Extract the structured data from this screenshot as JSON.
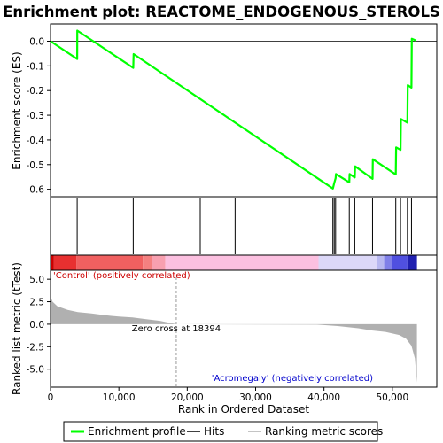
{
  "chart_data": {
    "type": "line",
    "title": "Enrichment plot: REACTOME_ENDOGENOUS_STEROLS",
    "xlabel": "Rank in Ordered Dataset",
    "xlim": [
      0,
      56500
    ],
    "x_ticks": [
      0,
      10000,
      20000,
      30000,
      40000,
      50000
    ],
    "x_tick_labels": [
      "0",
      "10,000",
      "20,000",
      "30,000",
      "40,000",
      "50,000"
    ],
    "es_panel": {
      "ylabel": "Enrichment score (ES)",
      "ylim": [
        -0.63,
        0.07
      ],
      "y_ticks": [
        0.0,
        -0.1,
        -0.2,
        -0.3,
        -0.4,
        -0.5,
        -0.6
      ],
      "y_tick_labels": [
        "0.0",
        "-0.1",
        "-0.2",
        "-0.3",
        "-0.4",
        "-0.5",
        "-0.6"
      ],
      "series": [
        {
          "name": "Enrichment profile",
          "color": "#00ff00",
          "points": [
            [
              0,
              0.0
            ],
            [
              3900,
              -0.072
            ],
            [
              3920,
              0.043
            ],
            [
              12100,
              -0.108
            ],
            [
              12150,
              -0.052
            ],
            [
              41300,
              -0.597
            ],
            [
              41500,
              -0.575
            ],
            [
              41700,
              -0.555
            ],
            [
              41750,
              -0.538
            ],
            [
              43700,
              -0.572
            ],
            [
              43750,
              -0.538
            ],
            [
              44500,
              -0.552
            ],
            [
              44550,
              -0.507
            ],
            [
              47100,
              -0.558
            ],
            [
              47150,
              -0.478
            ],
            [
              50500,
              -0.54
            ],
            [
              50550,
              -0.43
            ],
            [
              51200,
              -0.44
            ],
            [
              51250,
              -0.315
            ],
            [
              52200,
              -0.33
            ],
            [
              52250,
              -0.178
            ],
            [
              52800,
              -0.188
            ],
            [
              52850,
              0.01
            ],
            [
              53500,
              0.002
            ]
          ]
        }
      ]
    },
    "hits": {
      "name": "Hits",
      "positions": [
        3900,
        12100,
        21900,
        27000,
        41300,
        41500,
        41700,
        43700,
        44500,
        47100,
        50500,
        51200,
        52200,
        52800
      ]
    },
    "heatmap": {
      "segments": [
        {
          "from": 0,
          "to": 500,
          "color": "#cc0000"
        },
        {
          "from": 500,
          "to": 3800,
          "color": "#e83030"
        },
        {
          "from": 3800,
          "to": 13500,
          "color": "#f06060"
        },
        {
          "from": 13500,
          "to": 14800,
          "color": "#f48080"
        },
        {
          "from": 14800,
          "to": 16800,
          "color": "#f8a0b0"
        },
        {
          "from": 16800,
          "to": 39200,
          "color": "#fcc0e0"
        },
        {
          "from": 39200,
          "to": 47800,
          "color": "#dcd8f8"
        },
        {
          "from": 47800,
          "to": 48800,
          "color": "#b8b8f0"
        },
        {
          "from": 48800,
          "to": 50000,
          "color": "#8080e8"
        },
        {
          "from": 50000,
          "to": 52200,
          "color": "#5050e0"
        },
        {
          "from": 52200,
          "to": 53600,
          "color": "#2020b0"
        }
      ]
    },
    "metric_panel": {
      "ylabel": "Ranked list metric (tTest)",
      "ylim": [
        -7,
        6
      ],
      "y_ticks": [
        5.0,
        2.5,
        0.0,
        -2.5,
        -5.0
      ],
      "y_tick_labels": [
        "5.0",
        "2.5",
        "0.0",
        "-2.5",
        "-5.0"
      ],
      "profile": [
        [
          0,
          3.1
        ],
        [
          300,
          2.5
        ],
        [
          1000,
          2.0
        ],
        [
          2500,
          1.6
        ],
        [
          4000,
          1.35
        ],
        [
          6000,
          1.2
        ],
        [
          8000,
          1.0
        ],
        [
          10000,
          0.85
        ],
        [
          12000,
          0.75
        ],
        [
          14000,
          0.55
        ],
        [
          16000,
          0.38
        ],
        [
          18394,
          0.0
        ],
        [
          39000,
          -0.05
        ],
        [
          42000,
          -0.2
        ],
        [
          45000,
          -0.45
        ],
        [
          47000,
          -0.7
        ],
        [
          49000,
          -0.85
        ],
        [
          51000,
          -1.2
        ],
        [
          52000,
          -1.6
        ],
        [
          52800,
          -2.4
        ],
        [
          53300,
          -3.8
        ],
        [
          53600,
          -6.5
        ]
      ]
    },
    "zero_cross": 18394,
    "annotations": {
      "positive": "'Control' (positively correlated)",
      "negative": "'Acromegaly' (negatively correlated)",
      "zero_cross": "Zero cross at 18394"
    },
    "legend": {
      "position": "bottom",
      "items": [
        {
          "label": "Enrichment profile",
          "color": "#00ff00"
        },
        {
          "label": "Hits",
          "color": "#000000"
        },
        {
          "label": "Ranking metric scores",
          "color": "#b0b0b0"
        }
      ]
    }
  }
}
